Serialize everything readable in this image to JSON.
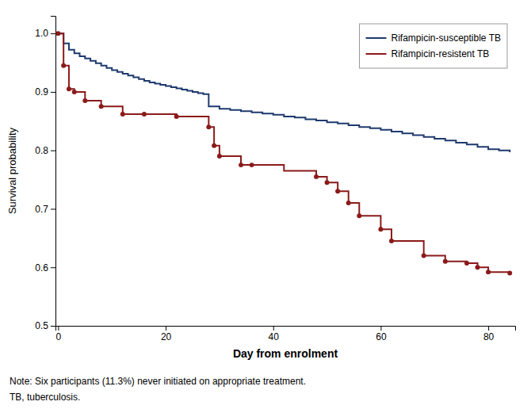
{
  "chart_data": {
    "type": "line",
    "xlabel": "Day from enrolment",
    "ylabel": "Survival probability",
    "xlim": [
      -0.5,
      85
    ],
    "ylim": [
      0.5,
      1.03
    ],
    "xticks": [
      0,
      20,
      40,
      60,
      80
    ],
    "yticks": [
      0.5,
      0.6,
      0.7,
      0.8,
      0.9,
      {
        "value": 1.0,
        "label": "1.0"
      }
    ],
    "grid": false,
    "legend": "upper right",
    "series": [
      {
        "name": "Rifampicin-susceptible TB",
        "type": "line",
        "line_style": "step",
        "color": "#1e3a6e",
        "x": [
          0,
          1,
          2,
          3,
          4,
          5,
          6,
          7,
          8,
          9,
          10,
          11,
          12,
          13,
          14,
          15,
          16,
          17,
          18,
          19,
          20,
          21,
          22,
          23,
          24,
          25,
          26,
          27,
          28,
          30,
          32,
          34,
          36,
          38,
          40,
          42,
          44,
          46,
          48,
          50,
          52,
          54,
          56,
          58,
          60,
          62,
          64,
          66,
          68,
          70,
          72,
          74,
          76,
          78,
          80,
          82,
          84
        ],
        "values": [
          1.0,
          0.983,
          0.972,
          0.966,
          0.961,
          0.957,
          0.953,
          0.949,
          0.945,
          0.941,
          0.937,
          0.934,
          0.931,
          0.928,
          0.925,
          0.922,
          0.919,
          0.916,
          0.914,
          0.912,
          0.91,
          0.908,
          0.906,
          0.904,
          0.902,
          0.9,
          0.898,
          0.896,
          0.875,
          0.871,
          0.869,
          0.867,
          0.865,
          0.863,
          0.861,
          0.858,
          0.856,
          0.853,
          0.851,
          0.848,
          0.846,
          0.843,
          0.84,
          0.838,
          0.835,
          0.832,
          0.829,
          0.826,
          0.823,
          0.82,
          0.817,
          0.813,
          0.81,
          0.806,
          0.802,
          0.8,
          0.797
        ]
      },
      {
        "name": "Rifampicin-resistent TB",
        "type": "line",
        "line_style": "step",
        "color": "#8b1a1a",
        "x": [
          0,
          1,
          2,
          3,
          5,
          8,
          12,
          16,
          22,
          28,
          29,
          30,
          32,
          34,
          36,
          42,
          48,
          50,
          52,
          54,
          56,
          60,
          62,
          68,
          72,
          76,
          78,
          80,
          84
        ],
        "values": [
          1.0,
          0.945,
          0.905,
          0.9,
          0.885,
          0.875,
          0.862,
          0.862,
          0.858,
          0.84,
          0.808,
          0.79,
          0.79,
          0.775,
          0.775,
          0.765,
          0.755,
          0.745,
          0.73,
          0.71,
          0.688,
          0.665,
          0.645,
          0.62,
          0.61,
          0.607,
          0.6,
          0.592,
          0.59
        ]
      },
      {
        "type": "scatter",
        "marker": "circle",
        "color": "#8b1a1a",
        "x": [
          0,
          1,
          2,
          3,
          5,
          8,
          12,
          16,
          22,
          28,
          29,
          30,
          34,
          36,
          48,
          50,
          52,
          54,
          56,
          60,
          62,
          68,
          72,
          76,
          78,
          80,
          84
        ],
        "values": [
          1.0,
          0.945,
          0.905,
          0.9,
          0.885,
          0.875,
          0.862,
          0.862,
          0.858,
          0.84,
          0.808,
          0.79,
          0.775,
          0.775,
          0.755,
          0.745,
          0.73,
          0.71,
          0.688,
          0.665,
          0.645,
          0.62,
          0.61,
          0.607,
          0.6,
          0.592,
          0.59
        ]
      }
    ],
    "annotations": [
      "Note: Six participants (11.3%) never initiated on appropriate treatment.",
      "TB, tuberculosis."
    ]
  }
}
